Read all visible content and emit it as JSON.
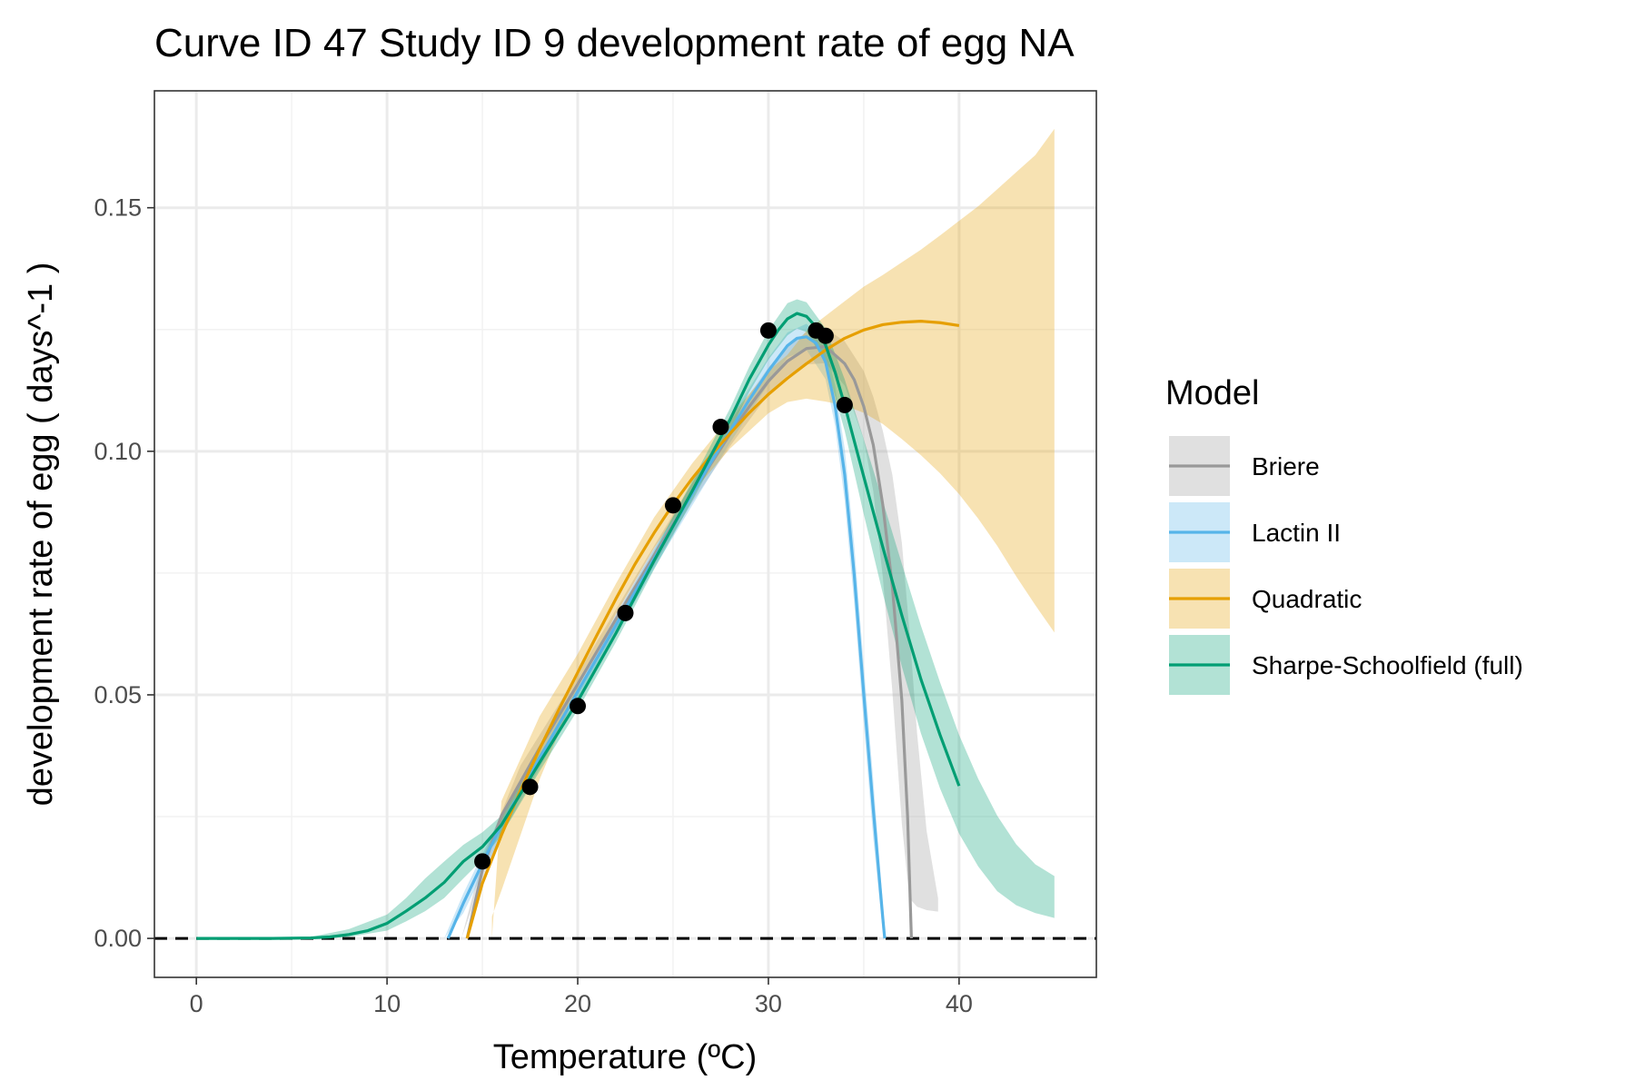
{
  "chart_data": {
    "type": "line",
    "title": "Curve ID 47 Study ID 9 development rate of egg NA",
    "xlabel": "Temperature (ºC)",
    "ylabel": "development rate of egg ( days^-1 )",
    "xlim": [
      -2.2,
      47.2
    ],
    "ylim": [
      -0.008,
      0.174
    ],
    "x_ticks": [
      0,
      10,
      20,
      30,
      40
    ],
    "x_tick_labels": [
      "0",
      "10",
      "20",
      "30",
      "40"
    ],
    "y_ticks": [
      0.0,
      0.05,
      0.1,
      0.15
    ],
    "y_tick_labels": [
      "0.00",
      "0.05",
      "0.10",
      "0.15"
    ],
    "grid": true,
    "reference_line": {
      "y": 0,
      "style": "dashed",
      "color": "#000000"
    },
    "legend": {
      "title": "Model",
      "position": "right",
      "entries": [
        "Briere",
        "Lactin II",
        "Quadratic",
        "Sharpe-Schoolfield (full)"
      ]
    },
    "observed_points": {
      "color": "#000000",
      "points": [
        [
          15,
          0.0158
        ],
        [
          17.5,
          0.0311
        ],
        [
          20,
          0.0477
        ],
        [
          22.5,
          0.0668
        ],
        [
          25,
          0.0889
        ],
        [
          27.5,
          0.105
        ],
        [
          30,
          0.1248
        ],
        [
          32.5,
          0.1248
        ],
        [
          33,
          0.1237
        ],
        [
          34,
          0.1095
        ]
      ]
    },
    "series": [
      {
        "name": "Briere",
        "color": "#999999",
        "band_color": "#d9d9d9",
        "line": [
          [
            14.2,
            0.0
          ],
          [
            15,
            0.0141
          ],
          [
            16,
            0.0252
          ],
          [
            18,
            0.0391
          ],
          [
            20,
            0.0522
          ],
          [
            22,
            0.0655
          ],
          [
            24,
            0.0786
          ],
          [
            26,
            0.0914
          ],
          [
            28,
            0.1036
          ],
          [
            29,
            0.1092
          ],
          [
            30,
            0.1144
          ],
          [
            31,
            0.1185
          ],
          [
            32,
            0.1211
          ],
          [
            33,
            0.1215
          ],
          [
            34,
            0.118
          ],
          [
            34.5,
            0.1147
          ],
          [
            35,
            0.1092
          ],
          [
            35.5,
            0.1013
          ],
          [
            36,
            0.089
          ],
          [
            36.5,
            0.0723
          ],
          [
            37,
            0.0488
          ],
          [
            37.3,
            0.025
          ],
          [
            37.5,
            0.0
          ]
        ],
        "band": [
          [
            13.9,
            0.0,
            0.0
          ],
          [
            15,
            0.0121,
            0.0163
          ],
          [
            17,
            0.0312,
            0.0355
          ],
          [
            20,
            0.0503,
            0.0543
          ],
          [
            23,
            0.0701,
            0.0741
          ],
          [
            26,
            0.0895,
            0.0935
          ],
          [
            28,
            0.1011,
            0.1061
          ],
          [
            30,
            0.1117,
            0.1172
          ],
          [
            31,
            0.1155,
            0.1216
          ],
          [
            32,
            0.1178,
            0.1245
          ],
          [
            33,
            0.1181,
            0.1252
          ],
          [
            34,
            0.1135,
            0.1226
          ],
          [
            35,
            0.1024,
            0.1165
          ],
          [
            35.5,
            0.0918,
            0.1112
          ],
          [
            36,
            0.0742,
            0.1042
          ],
          [
            36.5,
            0.0508,
            0.0952
          ],
          [
            37,
            0.0235,
            0.0812
          ],
          [
            37.4,
            0.0082,
            0.063
          ],
          [
            37.8,
            0.0065,
            0.042
          ],
          [
            38.3,
            0.0058,
            0.022
          ],
          [
            38.9,
            0.0055,
            0.0082
          ]
        ]
      },
      {
        "name": "Lactin II",
        "color": "#56b4e9",
        "band_color": "#cde6f5",
        "line": [
          [
            13.2,
            0.0
          ],
          [
            14,
            0.0072
          ],
          [
            15,
            0.0154
          ],
          [
            16,
            0.0233
          ],
          [
            18,
            0.037
          ],
          [
            20,
            0.0507
          ],
          [
            22,
            0.0643
          ],
          [
            24,
            0.0779
          ],
          [
            26,
            0.0913
          ],
          [
            28,
            0.1043
          ],
          [
            29,
            0.1106
          ],
          [
            30,
            0.1165
          ],
          [
            31,
            0.1217
          ],
          [
            31.5,
            0.1232
          ],
          [
            32,
            0.1235
          ],
          [
            32.5,
            0.1222
          ],
          [
            33,
            0.1183
          ],
          [
            33.5,
            0.1093
          ],
          [
            34,
            0.0952
          ],
          [
            34.5,
            0.0747
          ],
          [
            35,
            0.0502
          ],
          [
            35.5,
            0.0265
          ],
          [
            36,
            0.0042
          ],
          [
            36.1,
            0.0
          ]
        ],
        "band": [
          [
            13.0,
            0.0,
            0.0
          ],
          [
            14,
            0.0052,
            0.0092
          ],
          [
            16,
            0.0212,
            0.0254
          ],
          [
            20,
            0.0488,
            0.0526
          ],
          [
            24,
            0.0759,
            0.0799
          ],
          [
            28,
            0.1018,
            0.1068
          ],
          [
            30,
            0.1138,
            0.1192
          ],
          [
            31,
            0.1193,
            0.1244
          ],
          [
            32,
            0.1208,
            0.1262
          ],
          [
            33,
            0.1148,
            0.1218
          ],
          [
            33.5,
            0.1052,
            0.1134
          ],
          [
            34,
            0.0898,
            0.1006
          ],
          [
            34.5,
            0.0688,
            0.0808
          ],
          [
            35,
            0.0442,
            0.0562
          ],
          [
            35.5,
            0.0205,
            0.0325
          ],
          [
            36,
            0.0012,
            0.0072
          ]
        ]
      },
      {
        "name": "Quadratic",
        "color": "#e69f00",
        "band_color": "#f5dca8",
        "line": [
          [
            14.2,
            0.0
          ],
          [
            15,
            0.0113
          ],
          [
            16,
            0.0212
          ],
          [
            17,
            0.0304
          ],
          [
            18,
            0.0389
          ],
          [
            19,
            0.0469
          ],
          [
            20,
            0.0546
          ],
          [
            21,
            0.0622
          ],
          [
            22,
            0.0697
          ],
          [
            23,
            0.0768
          ],
          [
            24,
            0.0832
          ],
          [
            25,
            0.0891
          ],
          [
            26,
            0.0944
          ],
          [
            27,
            0.0992
          ],
          [
            28,
            0.1037
          ],
          [
            29,
            0.1079
          ],
          [
            30,
            0.1117
          ],
          [
            31,
            0.115
          ],
          [
            32,
            0.118
          ],
          [
            33,
            0.1208
          ],
          [
            34,
            0.1232
          ],
          [
            35,
            0.1249
          ],
          [
            36,
            0.126
          ],
          [
            37,
            0.1265
          ],
          [
            38,
            0.1267
          ],
          [
            39,
            0.1264
          ],
          [
            40,
            0.1258
          ]
        ],
        "band": [
          [
            15.5,
            0.0045,
            0.0
          ],
          [
            16,
            0.0098,
            0.0282
          ],
          [
            18,
            0.0326,
            0.0456
          ],
          [
            20,
            0.0514,
            0.0584
          ],
          [
            22,
            0.0666,
            0.0728
          ],
          [
            24,
            0.0801,
            0.0864
          ],
          [
            26,
            0.0915,
            0.0975
          ],
          [
            28,
            0.1006,
            0.1071
          ],
          [
            30,
            0.1078,
            0.1165
          ],
          [
            31,
            0.1101,
            0.1198
          ],
          [
            32,
            0.1108,
            0.1248
          ],
          [
            33,
            0.1102,
            0.1278
          ],
          [
            34,
            0.1094,
            0.1308
          ],
          [
            35,
            0.1079,
            0.1338
          ],
          [
            36,
            0.1056,
            0.1362
          ],
          [
            37,
            0.1025,
            0.1388
          ],
          [
            38,
            0.0992,
            0.1414
          ],
          [
            39,
            0.0955,
            0.1443
          ],
          [
            40,
            0.0912,
            0.1473
          ],
          [
            41,
            0.0862,
            0.1503
          ],
          [
            42,
            0.0806,
            0.1538
          ],
          [
            43,
            0.0743,
            0.1573
          ],
          [
            44,
            0.0684,
            0.1608
          ],
          [
            45,
            0.0628,
            0.1662
          ]
        ]
      },
      {
        "name": "Sharpe-Schoolfield (full)",
        "color": "#009e73",
        "band_color": "#b3e2d5",
        "line": [
          [
            0,
            0.0
          ],
          [
            2,
            0.0
          ],
          [
            4,
            0.0
          ],
          [
            6,
            0.0001
          ],
          [
            7,
            0.0003
          ],
          [
            8,
            0.0008
          ],
          [
            9,
            0.0016
          ],
          [
            10,
            0.0031
          ],
          [
            11,
            0.0056
          ],
          [
            12,
            0.0083
          ],
          [
            13,
            0.0115
          ],
          [
            14,
            0.0158
          ],
          [
            15,
            0.0188
          ],
          [
            16,
            0.0233
          ],
          [
            18,
            0.0361
          ],
          [
            20,
            0.0487
          ],
          [
            22,
            0.0626
          ],
          [
            24,
            0.0775
          ],
          [
            26,
            0.0918
          ],
          [
            28,
            0.1066
          ],
          [
            29,
            0.1148
          ],
          [
            30,
            0.1218
          ],
          [
            30.5,
            0.1248
          ],
          [
            31,
            0.1272
          ],
          [
            31.5,
            0.1283
          ],
          [
            32,
            0.1277
          ],
          [
            32.5,
            0.1255
          ],
          [
            33,
            0.1218
          ],
          [
            33.5,
            0.1162
          ],
          [
            34,
            0.1095
          ],
          [
            35,
            0.0948
          ],
          [
            36,
            0.0803
          ],
          [
            37,
            0.0663
          ],
          [
            38,
            0.0532
          ],
          [
            39,
            0.0418
          ],
          [
            40,
            0.0313
          ]
        ],
        "band": [
          [
            0,
            0.0,
            0.0
          ],
          [
            4,
            0.0,
            0.0001
          ],
          [
            6,
            0.0,
            0.0003
          ],
          [
            8,
            0.0003,
            0.0019
          ],
          [
            10,
            0.0016,
            0.0049
          ],
          [
            11,
            0.0035,
            0.0083
          ],
          [
            12,
            0.0056,
            0.0123
          ],
          [
            13,
            0.0083,
            0.0158
          ],
          [
            14,
            0.0123,
            0.0192
          ],
          [
            15,
            0.0162,
            0.0218
          ],
          [
            16,
            0.0212,
            0.0252
          ],
          [
            18,
            0.0343,
            0.0378
          ],
          [
            20,
            0.0469,
            0.0505
          ],
          [
            22,
            0.0608,
            0.0644
          ],
          [
            24,
            0.0757,
            0.0793
          ],
          [
            26,
            0.0898,
            0.0939
          ],
          [
            28,
            0.1043,
            0.1089
          ],
          [
            29,
            0.1122,
            0.1174
          ],
          [
            30,
            0.1188,
            0.1248
          ],
          [
            31,
            0.1238,
            0.1304
          ],
          [
            31.5,
            0.1252,
            0.1312
          ],
          [
            32,
            0.1245,
            0.1306
          ],
          [
            33,
            0.1182,
            0.1252
          ],
          [
            34,
            0.1042,
            0.1148
          ],
          [
            35,
            0.0871,
            0.1025
          ],
          [
            36,
            0.0708,
            0.0898
          ],
          [
            37,
            0.0558,
            0.0769
          ],
          [
            38,
            0.0421,
            0.0642
          ],
          [
            39,
            0.0308,
            0.0526
          ],
          [
            40,
            0.0215,
            0.0418
          ],
          [
            41,
            0.0148,
            0.0328
          ],
          [
            42,
            0.0097,
            0.0252
          ],
          [
            43,
            0.0068,
            0.0193
          ],
          [
            44,
            0.0052,
            0.0152
          ],
          [
            45,
            0.0042,
            0.0128
          ]
        ]
      }
    ]
  }
}
